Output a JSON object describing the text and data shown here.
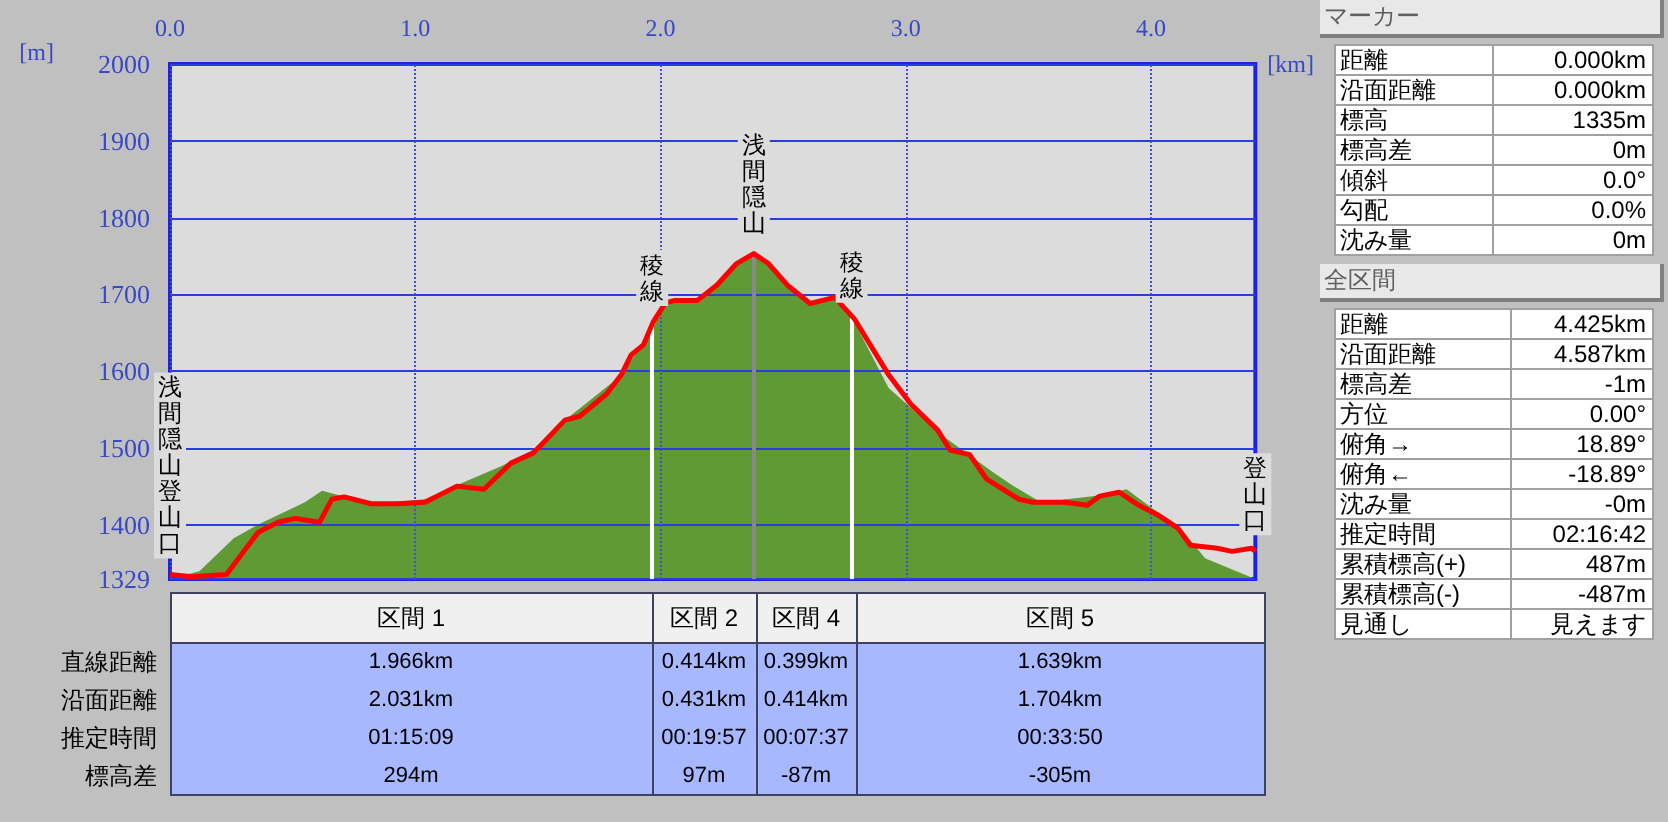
{
  "chart_data": [
    {
      "type": "line",
      "xlabel": "[km]",
      "ylabel": "[m]",
      "xlim": [
        0,
        4.425
      ],
      "xticks": [
        {
          "value": 0,
          "label": "0.0"
        },
        {
          "value": 1,
          "label": "1.0"
        },
        {
          "value": 2,
          "label": "2.0"
        },
        {
          "value": 3,
          "label": "3.0"
        },
        {
          "value": 4,
          "label": "4.0"
        }
      ],
      "ylim": [
        1329,
        2000
      ],
      "yticks": [
        1329,
        1400,
        1500,
        1600,
        1700,
        1800,
        1900,
        2000
      ],
      "grid": true,
      "series": [
        {
          "type": "area",
          "color": "#5f9a35",
          "x": [
            0,
            0.12,
            0.26,
            0.36,
            0.55,
            0.62,
            0.82,
            1.04,
            1.19,
            1.35,
            1.48,
            1.61,
            1.83,
            1.97,
            2.02,
            2.06,
            2.15,
            2.23,
            2.31,
            2.38,
            2.44,
            2.52,
            2.61,
            2.71,
            2.79,
            2.93,
            3.14,
            3.36,
            3.44,
            3.55,
            3.77,
            3.9,
            4.01,
            4.11,
            4.22,
            4.38,
            4.425
          ],
          "values": [
            1329,
            1339,
            1382,
            1400,
            1429,
            1444,
            1427,
            1433,
            1454,
            1476,
            1497,
            1536,
            1592,
            1656,
            1692,
            1692,
            1692,
            1712,
            1740,
            1753,
            1740,
            1711,
            1688,
            1696,
            1664,
            1578,
            1518,
            1467,
            1450,
            1429,
            1437,
            1446,
            1420,
            1399,
            1356,
            1335,
            1329
          ]
        },
        {
          "type": "line",
          "color": "#ff0000",
          "x": [
            0,
            0.09,
            0.23,
            0.36,
            0.44,
            0.51,
            0.61,
            0.66,
            0.71,
            0.82,
            0.93,
            1.04,
            1.17,
            1.28,
            1.39,
            1.48,
            1.52,
            1.61,
            1.67,
            1.78,
            1.84,
            1.88,
            1.93,
            1.97,
            2.02,
            2.06,
            2.15,
            2.23,
            2.31,
            2.38,
            2.44,
            2.52,
            2.61,
            2.71,
            2.79,
            2.93,
            3.02,
            3.13,
            3.18,
            3.26,
            3.33,
            3.46,
            3.52,
            3.65,
            3.74,
            3.79,
            3.87,
            3.95,
            4.03,
            4.11,
            4.16,
            4.27,
            4.33,
            4.41,
            4.425
          ],
          "values": [
            1335,
            1332,
            1335,
            1390,
            1403,
            1408,
            1403,
            1433,
            1436,
            1427,
            1427,
            1429,
            1450,
            1446,
            1480,
            1493,
            1506,
            1536,
            1541,
            1570,
            1595,
            1621,
            1634,
            1664,
            1689,
            1692,
            1692,
            1712,
            1740,
            1753,
            1740,
            1711,
            1688,
            1696,
            1668,
            1595,
            1557,
            1523,
            1497,
            1491,
            1459,
            1433,
            1429,
            1429,
            1425,
            1437,
            1442,
            1425,
            1412,
            1395,
            1373,
            1369,
            1365,
            1369,
            1365
          ]
        }
      ],
      "ref_lines": [
        {
          "axis": "x",
          "value": 1.966,
          "color": "#ffffff"
        },
        {
          "axis": "x",
          "value": 2.38,
          "color": "#888888"
        },
        {
          "axis": "x",
          "value": 2.779,
          "color": "#ffffff"
        }
      ],
      "annotations": [
        {
          "text": "浅間隠山登山口",
          "x": 0,
          "y": 1335
        },
        {
          "text": "稜線",
          "x": 1.966,
          "y": 1664
        },
        {
          "text": "浅間隠山",
          "x": 2.38,
          "y": 1753
        },
        {
          "text": "稜線",
          "x": 2.779,
          "y": 1668
        },
        {
          "text": "登山口",
          "x": 4.425,
          "y": 1365
        }
      ]
    },
    {
      "type": "other",
      "categories": [
        "区間 1",
        "区間 2",
        "区間 4",
        "区間 5"
      ],
      "y_categories": [
        "直線距離",
        "沿面距離",
        "推定時間",
        "標高差"
      ],
      "cell_labels": [
        [
          "1.966km",
          "0.414km",
          "0.399km",
          "1.639km"
        ],
        [
          "2.031km",
          "0.431km",
          "0.414km",
          "1.704km"
        ],
        [
          "01:15:09",
          "00:19:57",
          "00:07:37",
          "00:33:50"
        ],
        [
          "294m",
          "97m",
          "-87m",
          "-305m"
        ]
      ]
    },
    {
      "type": "other",
      "title": "マーカー",
      "y_categories": [
        "距離",
        "沿面距離",
        "標高",
        "標高差",
        "傾斜",
        "勾配",
        "沈み量"
      ],
      "cell_labels": [
        [
          "0.000km"
        ],
        [
          "0.000km"
        ],
        [
          "1335m"
        ],
        [
          "0m"
        ],
        [
          "0.0°"
        ],
        [
          "0.0%"
        ],
        [
          "0m"
        ]
      ]
    },
    {
      "type": "other",
      "title": "全区間",
      "y_categories": [
        "距離",
        "沿面距離",
        "標高差",
        "方位",
        "俯角→",
        "俯角←",
        "沈み量",
        "推定時間",
        "累積標高(+)",
        "累積標高(-)",
        "見通し"
      ],
      "cell_labels": [
        [
          "4.425km"
        ],
        [
          "4.587km"
        ],
        [
          "-1m"
        ],
        [
          "0.00°"
        ],
        [
          "18.89°"
        ],
        [
          "-18.89°"
        ],
        [
          "-0m"
        ],
        [
          "02:16:42"
        ],
        [
          "487m"
        ],
        [
          "-487m"
        ],
        [
          "見えます"
        ]
      ]
    }
  ]
}
